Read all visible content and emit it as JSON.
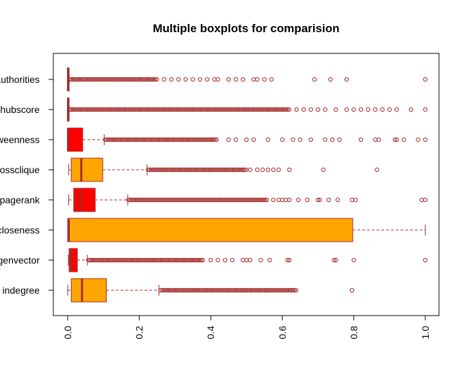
{
  "chart_data": {
    "type": "boxplot",
    "orientation": "horizontal",
    "title": "Multiple boxplots for comparision",
    "xlabel": "",
    "ylabel": "",
    "xlim": [
      0,
      1
    ],
    "xticks": [
      0.0,
      0.2,
      0.4,
      0.6,
      0.8,
      1.0
    ],
    "xtick_labels": [
      "0.0",
      "0.2",
      "0.4",
      "0.6",
      "0.8",
      "1.0"
    ],
    "grid": false,
    "legend": "none",
    "colors": {
      "orange": "#FFA500",
      "red": "#FF0000",
      "median": "#A52A2A",
      "outlier": "#A52A2A",
      "whisker": "#A52A2A"
    },
    "series": [
      {
        "label": "indegree",
        "fill": "orange",
        "min": 0.0,
        "q1": 0.01,
        "median": 0.04,
        "q3": 0.108,
        "max": 0.255,
        "outlier_range": [
          0.26,
          0.64
        ],
        "outliers": [
          0.795
        ]
      },
      {
        "label": "eigenvector",
        "fill": "red",
        "min": 0.002,
        "q1": 0.004,
        "median": 0.008,
        "q3": 0.027,
        "max": 0.055,
        "outlier_range": [
          0.058,
          0.38
        ],
        "outliers": [
          0.4,
          0.42,
          0.44,
          0.46,
          0.49,
          0.5,
          0.51,
          0.54,
          0.565,
          0.615,
          0.62,
          0.745,
          0.75,
          0.8,
          1.0
        ]
      },
      {
        "label": "closeness",
        "fill": "orange",
        "min": 0.0,
        "q1": 0.0,
        "median": 0.003,
        "q3": 0.797,
        "max": 1.0,
        "outliers": []
      },
      {
        "label": "pagerank",
        "fill": "red",
        "min": 0.003,
        "q1": 0.017,
        "median": 0.035,
        "q3": 0.077,
        "max": 0.168,
        "outlier_range": [
          0.17,
          0.56
        ],
        "outliers": [
          0.575,
          0.59,
          0.6,
          0.61,
          0.62,
          0.645,
          0.67,
          0.7,
          0.705,
          0.73,
          0.755,
          0.795,
          0.805,
          0.99,
          1.0
        ]
      },
      {
        "label": "crossclique",
        "fill": "orange",
        "min": 0.003,
        "q1": 0.01,
        "median": 0.038,
        "q3": 0.098,
        "max": 0.222,
        "outlier_range": [
          0.225,
          0.5
        ],
        "outliers": [
          0.51,
          0.53,
          0.545,
          0.56,
          0.575,
          0.59,
          0.62,
          0.715,
          0.865
        ]
      },
      {
        "label": "betweenness",
        "fill": "red",
        "min": 0.0,
        "q1": 0.0,
        "median": 0.001,
        "q3": 0.042,
        "max": 0.102,
        "outlier_range": [
          0.105,
          0.42
        ],
        "outliers": [
          0.45,
          0.47,
          0.5,
          0.52,
          0.56,
          0.6,
          0.63,
          0.65,
          0.68,
          0.72,
          0.74,
          0.76,
          0.82,
          0.86,
          0.87,
          0.915,
          0.92,
          0.94,
          0.98,
          1.0
        ]
      },
      {
        "label": "hubscore",
        "fill": "orange",
        "min": 0.0,
        "q1": 0.0,
        "median": 0.001,
        "q3": 0.004,
        "max": 0.004,
        "outlier_range": [
          0.005,
          0.62
        ],
        "outliers": [
          0.64,
          0.66,
          0.68,
          0.7,
          0.72,
          0.75,
          0.78,
          0.8,
          0.82,
          0.84,
          0.86,
          0.88,
          0.9,
          0.92,
          0.96,
          1.0
        ]
      },
      {
        "label": "authorities",
        "fill": "red",
        "min": 0.0,
        "q1": 0.0,
        "median": 0.001,
        "q3": 0.004,
        "max": 0.004,
        "outlier_range": [
          0.005,
          0.25
        ],
        "outliers": [
          0.27,
          0.29,
          0.31,
          0.33,
          0.35,
          0.37,
          0.39,
          0.41,
          0.42,
          0.45,
          0.47,
          0.49,
          0.52,
          0.53,
          0.55,
          0.57,
          0.69,
          0.735,
          0.78,
          1.0
        ]
      }
    ]
  }
}
